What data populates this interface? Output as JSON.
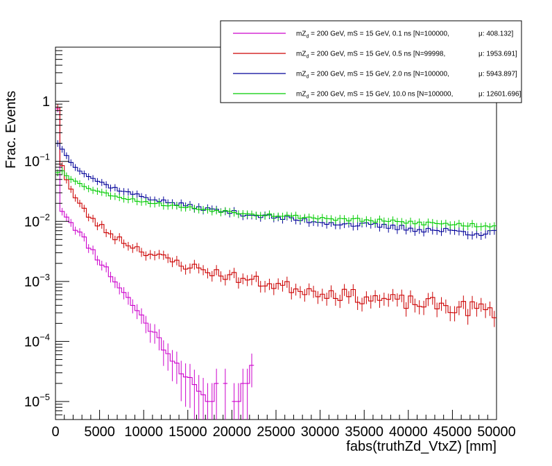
{
  "chart_data": {
    "type": "histogram",
    "xlabel": "fabs(truthZd_VtxZ) [mm]",
    "ylabel": "Frac. Events",
    "xlim": [
      0,
      50000
    ],
    "ylim": [
      5e-06,
      8
    ],
    "y_scale": "log",
    "grid": false,
    "legend_placement": "top-right",
    "x_ticks": [
      0,
      5000,
      10000,
      15000,
      20000,
      25000,
      30000,
      35000,
      40000,
      45000,
      50000
    ],
    "x_tick_labels": [
      "0",
      "5000",
      "10000",
      "15000",
      "20000",
      "25000",
      "30000",
      "35000",
      "40000",
      "45000",
      "50000"
    ],
    "y_ticks": [
      {
        "value": 1,
        "base": "1",
        "exp": ""
      },
      {
        "value": 0.1,
        "base": "10",
        "exp": "−1"
      },
      {
        "value": 0.01,
        "base": "10",
        "exp": "−2"
      },
      {
        "value": 0.001,
        "base": "10",
        "exp": "−3"
      },
      {
        "value": 0.0001,
        "base": "10",
        "exp": "−4"
      },
      {
        "value": 1e-05,
        "base": "10",
        "exp": "−5"
      }
    ],
    "series": [
      {
        "name_prefix": "mZ",
        "name_sub": "d",
        "name_rest": " = 200 GeV, mS = 15 GeV, 0.1 ns [N=100000,",
        "mu_label": "μ: 408.132]",
        "color": "#cc00cc",
        "model": {
          "kind": "exp",
          "a0": 0.75,
          "ap": 0.022,
          "xd": 2200,
          "floor": 2.5e-06,
          "noise": 0.12,
          "seed": 11
        }
      },
      {
        "name_prefix": "mZ",
        "name_sub": "d",
        "name_rest": " = 200 GeV, mS = 15 GeV, 0.5 ns [N=99998,",
        "mu_label": "μ: 1953.691]",
        "color": "#cc0000",
        "model": {
          "kind": "pow",
          "a0": 0.8,
          "A": 0.6,
          "x0": 280,
          "p": 1.45,
          "noise": 0.12,
          "seed": 23
        }
      },
      {
        "name_prefix": "mZ",
        "name_sub": "d",
        "name_rest": " = 200 GeV, mS = 15 GeV, 2.0 ns [N=100000,",
        "mu_label": "μ: 5943.897]",
        "color": "#000099",
        "model": {
          "kind": "pow",
          "a0": 0.2,
          "A": 0.34,
          "x0": 600,
          "p": 0.9,
          "noise": 0.05,
          "seed": 37
        }
      },
      {
        "name_prefix": "mZ",
        "name_sub": "d",
        "name_rest": " = 200 GeV, mS = 15 GeV, 10.0 ns [N=100000,",
        "mu_label": "μ: 12601.696]",
        "color": "#00cc00",
        "model": {
          "kind": "pow",
          "a0": 0.065,
          "A": 0.11,
          "x0": 700,
          "p": 0.6,
          "noise": 0.035,
          "seed": 53
        }
      }
    ],
    "n_bins": 100,
    "bin_width": 500
  }
}
